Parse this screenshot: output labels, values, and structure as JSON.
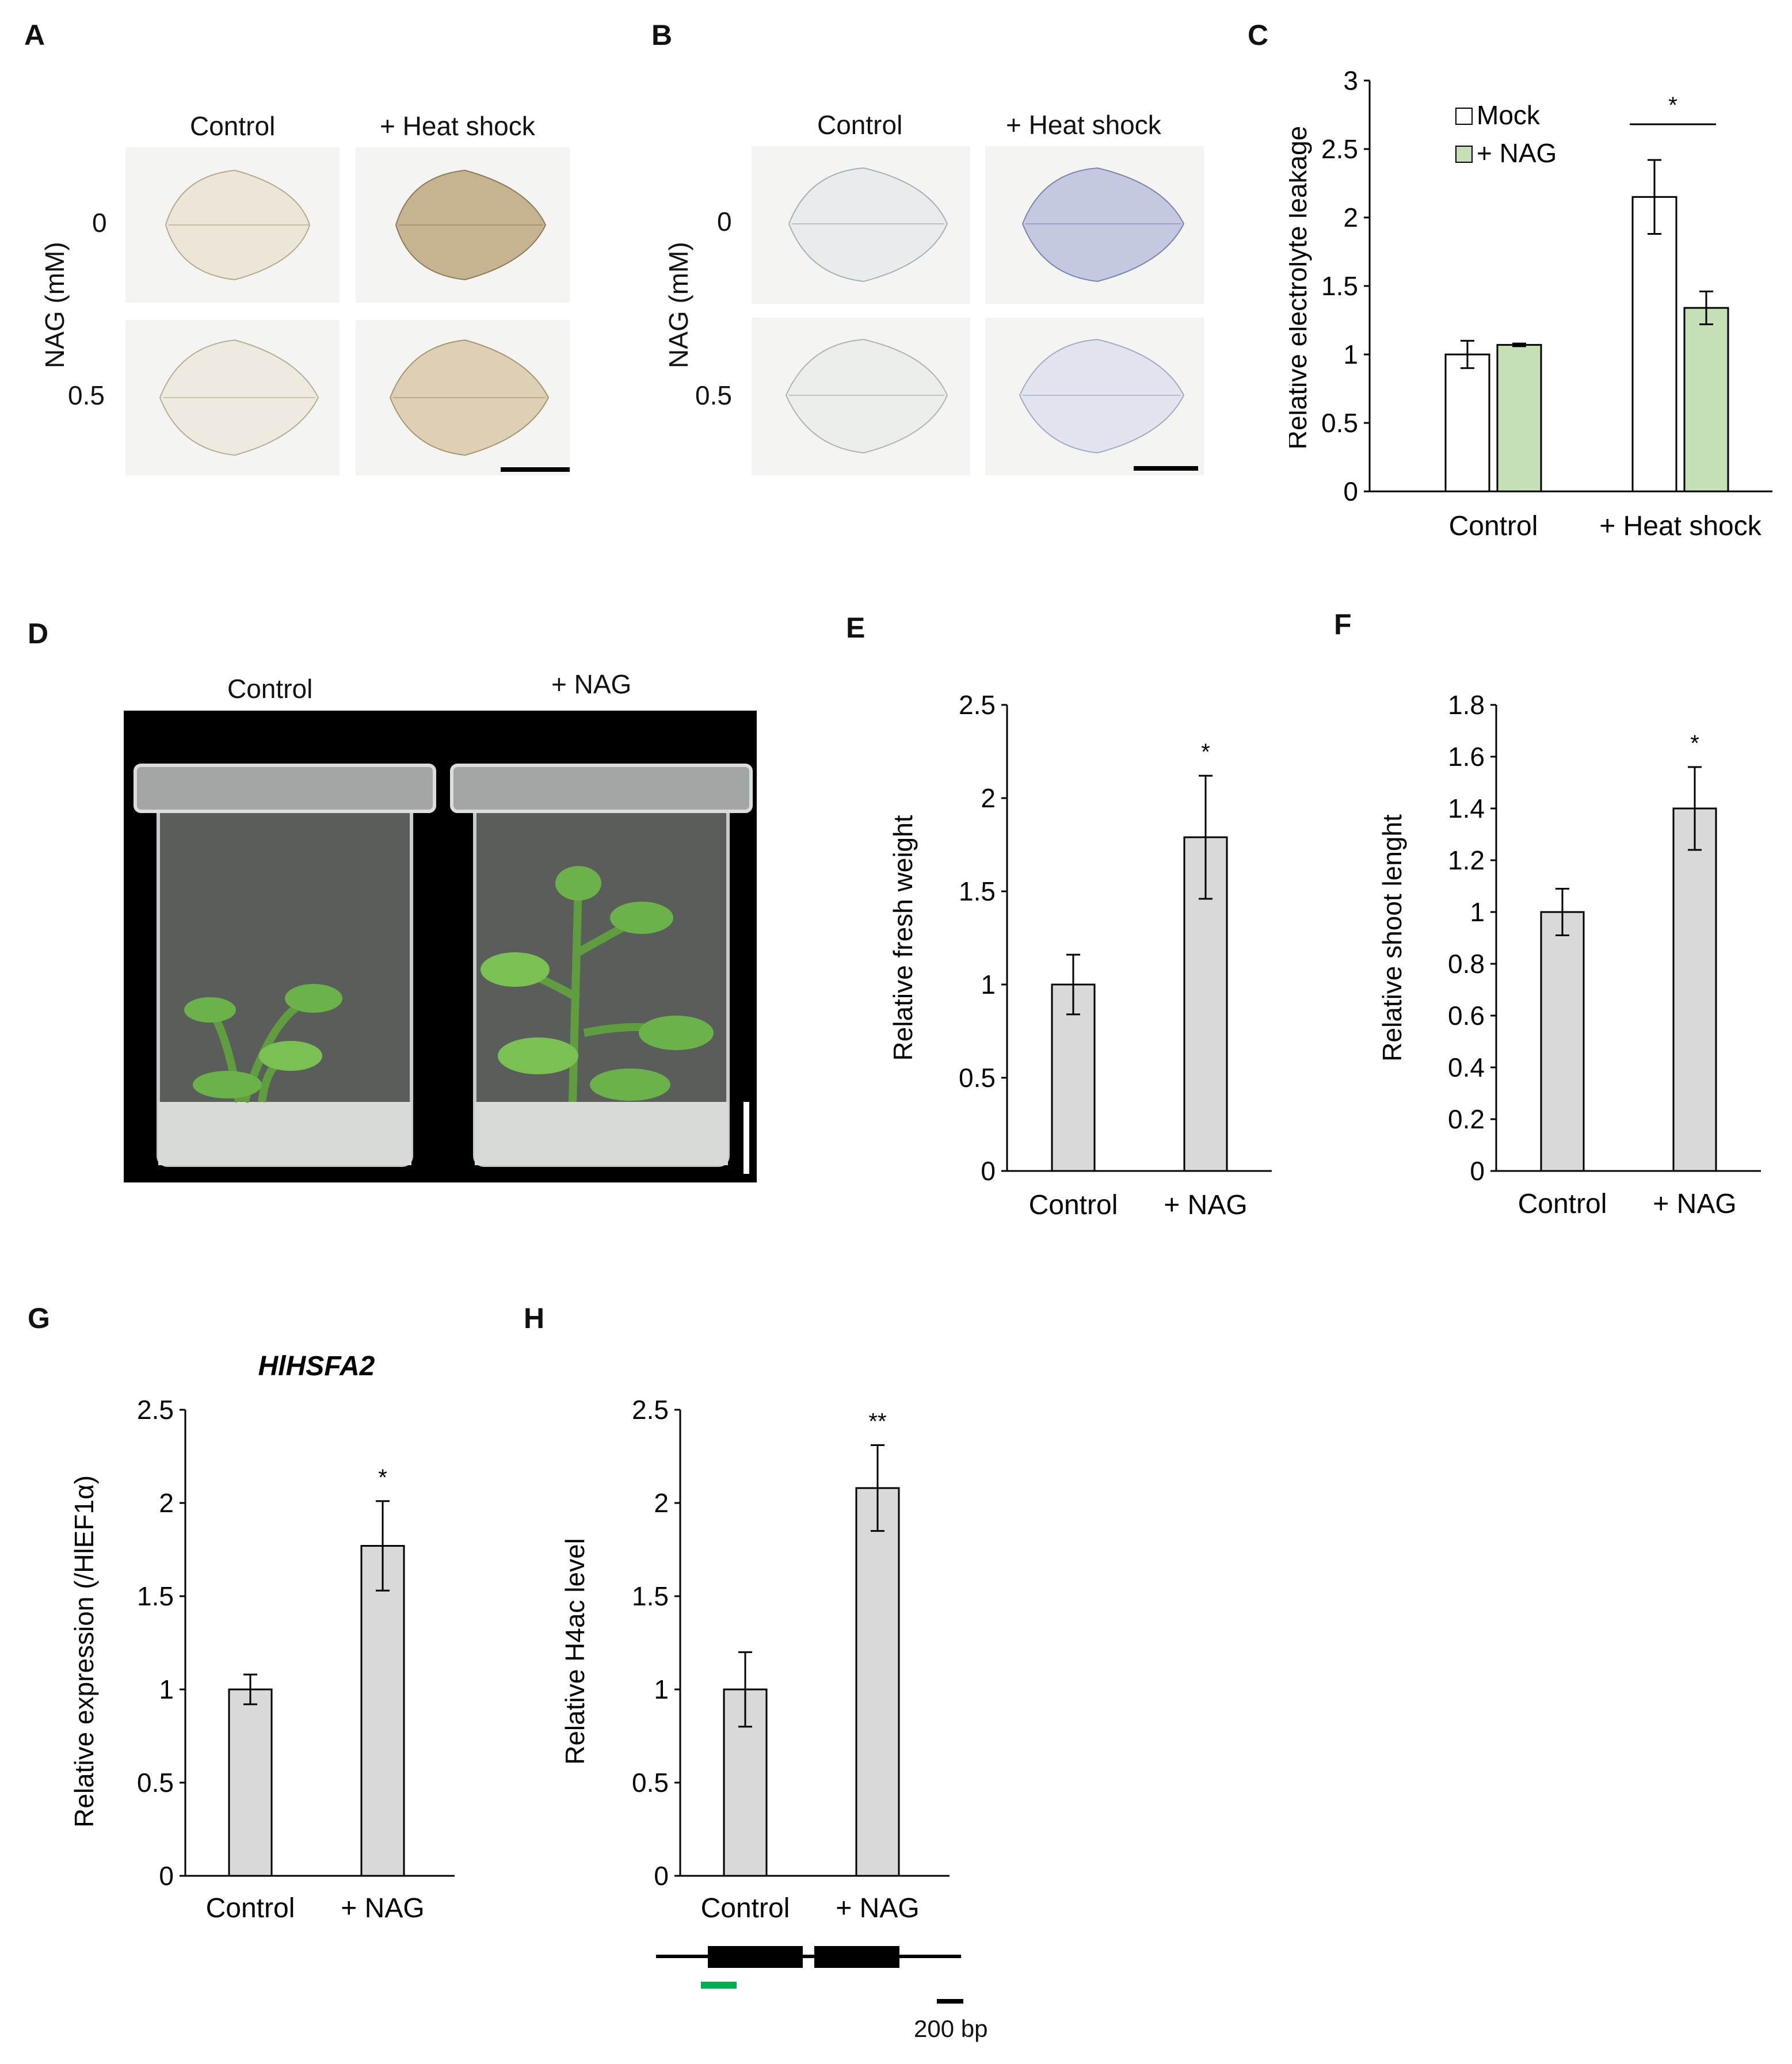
{
  "panel_labels": {
    "A": "A",
    "B": "B",
    "C": "C",
    "D": "D",
    "E": "E",
    "F": "F",
    "G": "G",
    "H": "H"
  },
  "panel_a": {
    "col_control": "Control",
    "col_heat": "+ Heat shock",
    "row0": "0",
    "row1": "0.5",
    "ylabel": "NAG (mM)"
  },
  "panel_b": {
    "col_control": "Control",
    "col_heat": "+ Heat shock",
    "row0": "0",
    "row1": "0.5",
    "ylabel": "NAG (mM)"
  },
  "panel_d": {
    "col_control": "Control",
    "col_nag": "+ NAG"
  },
  "panel_h": {
    "scale_label": "200 bp"
  },
  "colors": {
    "mock": "#ffffff",
    "nag": "#c5e0b4",
    "bar_gray": "#d9d9d9",
    "green_mark": "#00b050"
  },
  "chart_data": [
    {
      "id": "C",
      "type": "bar",
      "title": "",
      "ylabel": "Relative electrolyte leakage",
      "ylim": [
        0,
        3
      ],
      "yticks": [
        "0",
        "0.5",
        "1",
        "1.5",
        "2",
        "2.5",
        "3"
      ],
      "categories": [
        "Control",
        "+ Heat shock"
      ],
      "series": [
        {
          "name": "Mock",
          "values": [
            1.0,
            2.15
          ],
          "errors": [
            0.1,
            0.27
          ]
        },
        {
          "name": "+ NAG",
          "values": [
            1.07,
            1.34
          ],
          "errors": [
            0.01,
            0.12
          ]
        }
      ],
      "legend": [
        "Mock",
        "+ NAG"
      ],
      "annotations": [
        "*"
      ]
    },
    {
      "id": "E",
      "type": "bar",
      "title": "",
      "ylabel": "Relative fresh weight",
      "ylim": [
        0,
        2.5
      ],
      "yticks": [
        "0",
        "0.5",
        "1",
        "1.5",
        "2",
        "2.5"
      ],
      "categories": [
        "Control",
        "+ NAG"
      ],
      "values": [
        1.0,
        1.79
      ],
      "errors": [
        0.16,
        0.33
      ],
      "annotations": [
        "",
        "*"
      ]
    },
    {
      "id": "F",
      "type": "bar",
      "title": "",
      "ylabel": "Relative shoot lenght",
      "ylim": [
        0,
        1.8
      ],
      "yticks": [
        "0",
        "0.2",
        "0.4",
        "0.6",
        "0.8",
        "1",
        "1.2",
        "1.4",
        "1.6",
        "1.8"
      ],
      "categories": [
        "Control",
        "+ NAG"
      ],
      "values": [
        1.0,
        1.4
      ],
      "errors": [
        0.09,
        0.16
      ],
      "annotations": [
        "",
        "*"
      ]
    },
    {
      "id": "G",
      "type": "bar",
      "title": "HlHSFA2",
      "ylabel": "Relative expression (/HlEF1α)",
      "ylim": [
        0,
        2.5
      ],
      "yticks": [
        "0",
        "0.5",
        "1",
        "1.5",
        "2",
        "2.5"
      ],
      "categories": [
        "Control",
        "+ NAG"
      ],
      "values": [
        1.0,
        1.77
      ],
      "errors": [
        0.08,
        0.24
      ],
      "annotations": [
        "",
        "*"
      ]
    },
    {
      "id": "H",
      "type": "bar",
      "title": "",
      "ylabel": "Relative H4ac level",
      "ylim": [
        0,
        2.5
      ],
      "yticks": [
        "0",
        "0.5",
        "1",
        "1.5",
        "2",
        "2.5"
      ],
      "categories": [
        "Control",
        "+ NAG"
      ],
      "values": [
        1.0,
        2.08
      ],
      "errors": [
        0.2,
        0.23
      ],
      "annotations": [
        "",
        "**"
      ]
    }
  ]
}
